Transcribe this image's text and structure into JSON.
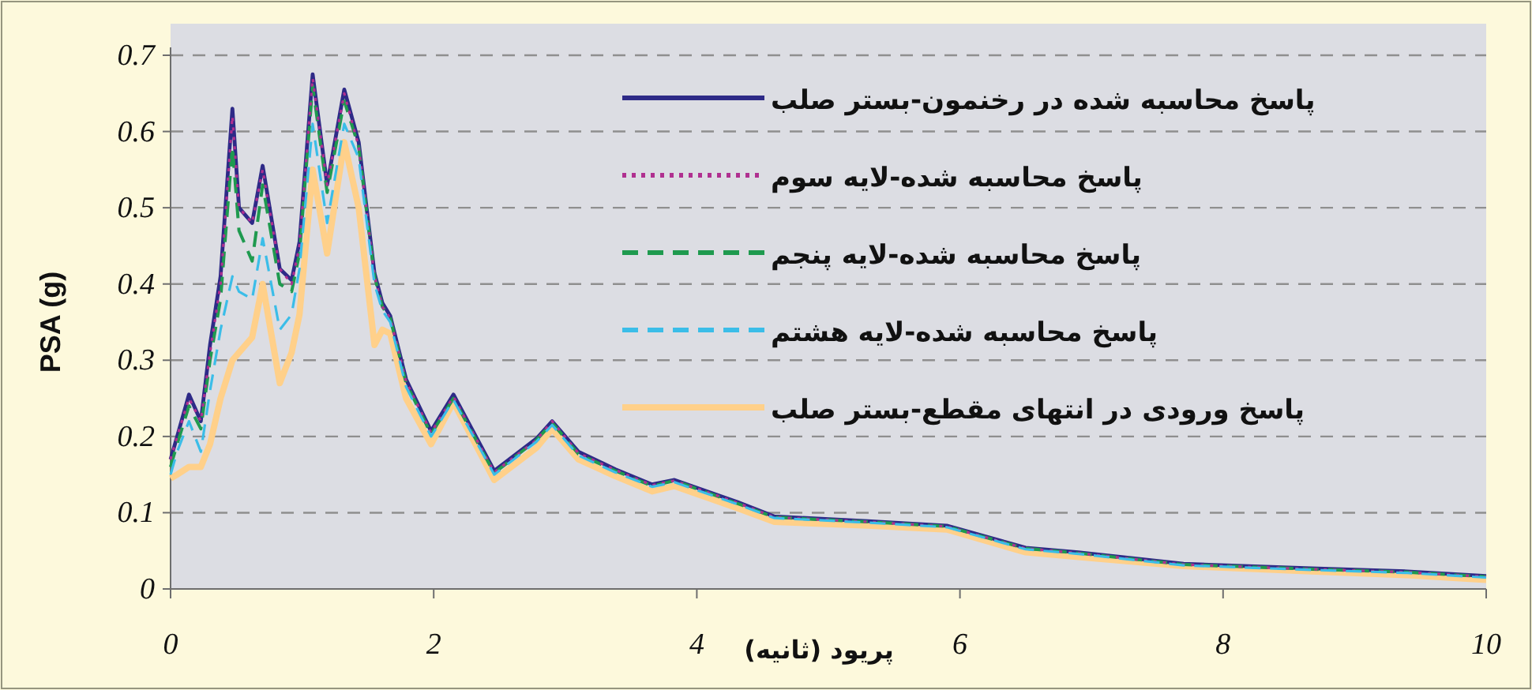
{
  "chart_data": {
    "type": "line",
    "xlabel": "پریود (ثانیه)",
    "ylabel": "PSA (g)",
    "x": [
      0,
      0.05,
      0.14,
      0.23,
      0.3,
      0.38,
      0.47,
      0.52,
      0.62,
      0.7,
      0.83,
      0.92,
      0.98,
      1.08,
      1.19,
      1.32,
      1.43,
      1.55,
      1.61,
      1.67,
      1.79,
      1.98,
      2.15,
      2.46,
      2.78,
      2.9,
      3.1,
      3.38,
      3.66,
      3.83,
      4.31,
      4.59,
      5.3,
      5.9,
      6.5,
      6.9,
      7.7,
      8.67,
      9.4,
      10
    ],
    "xlim": [
      0,
      10
    ],
    "xticks": [
      0,
      2,
      4,
      6,
      8,
      10
    ],
    "ylim": [
      0,
      0.7
    ],
    "yticks": [
      0,
      0.1,
      0.2,
      0.3,
      0.4,
      0.5,
      0.6,
      0.7
    ],
    "grid": "y",
    "legend": "top right",
    "series": [
      {
        "name": "پاسخ محاسبه شده در رخنمون-بستر صلب",
        "color": "#2e2a87",
        "line_style": "solid",
        "values": [
          0.17,
          0.2,
          0.255,
          0.22,
          0.32,
          0.41,
          0.63,
          0.5,
          0.48,
          0.555,
          0.42,
          0.405,
          0.455,
          0.675,
          0.53,
          0.655,
          0.586,
          0.414,
          0.375,
          0.358,
          0.275,
          0.207,
          0.255,
          0.155,
          0.197,
          0.22,
          0.18,
          0.157,
          0.137,
          0.143,
          0.114,
          0.095,
          0.089,
          0.083,
          0.054,
          0.048,
          0.033,
          0.027,
          0.023,
          0.017
        ]
      },
      {
        "name": "پاسخ محاسبه شده-لایه سوم",
        "color": "#b03090",
        "line_style": "dotted",
        "values": [
          0.17,
          0.2,
          0.25,
          0.22,
          0.31,
          0.4,
          0.62,
          0.5,
          0.48,
          0.55,
          0.42,
          0.4,
          0.45,
          0.67,
          0.53,
          0.65,
          0.58,
          0.41,
          0.37,
          0.355,
          0.272,
          0.205,
          0.252,
          0.153,
          0.195,
          0.22,
          0.178,
          0.156,
          0.136,
          0.142,
          0.113,
          0.094,
          0.088,
          0.082,
          0.053,
          0.047,
          0.032,
          0.026,
          0.022,
          0.016
        ]
      },
      {
        "name": "پاسخ محاسبه شده-لایه پنجم",
        "color": "#1f9a4f",
        "line_style": "dashed",
        "values": [
          0.16,
          0.19,
          0.24,
          0.21,
          0.3,
          0.38,
          0.58,
          0.47,
          0.43,
          0.53,
          0.4,
          0.39,
          0.44,
          0.66,
          0.52,
          0.64,
          0.58,
          0.41,
          0.37,
          0.355,
          0.27,
          0.203,
          0.25,
          0.152,
          0.195,
          0.218,
          0.177,
          0.155,
          0.135,
          0.142,
          0.112,
          0.094,
          0.088,
          0.082,
          0.053,
          0.047,
          0.032,
          0.026,
          0.022,
          0.016
        ]
      },
      {
        "name": "پاسخ محاسبه شده-لایه هشتم",
        "color": "#3bbde8",
        "line_style": "dashed",
        "values": [
          0.15,
          0.18,
          0.22,
          0.18,
          0.26,
          0.34,
          0.41,
          0.39,
          0.38,
          0.46,
          0.34,
          0.36,
          0.42,
          0.61,
          0.48,
          0.61,
          0.565,
          0.4,
          0.365,
          0.35,
          0.265,
          0.2,
          0.248,
          0.15,
          0.193,
          0.215,
          0.175,
          0.153,
          0.134,
          0.14,
          0.111,
          0.093,
          0.087,
          0.081,
          0.052,
          0.046,
          0.031,
          0.025,
          0.021,
          0.015
        ]
      },
      {
        "name": "پاسخ ورودی در انتهای مقطع-بستر صلب",
        "color": "#ffd08a",
        "line_style": "solid",
        "values": [
          0.145,
          0.15,
          0.16,
          0.16,
          0.19,
          0.25,
          0.3,
          0.31,
          0.33,
          0.4,
          0.27,
          0.31,
          0.36,
          0.55,
          0.44,
          0.586,
          0.5,
          0.32,
          0.34,
          0.335,
          0.25,
          0.19,
          0.245,
          0.143,
          0.185,
          0.21,
          0.17,
          0.148,
          0.128,
          0.135,
          0.106,
          0.088,
          0.083,
          0.078,
          0.048,
          0.042,
          0.03,
          0.023,
          0.018,
          0.012
        ]
      }
    ]
  }
}
